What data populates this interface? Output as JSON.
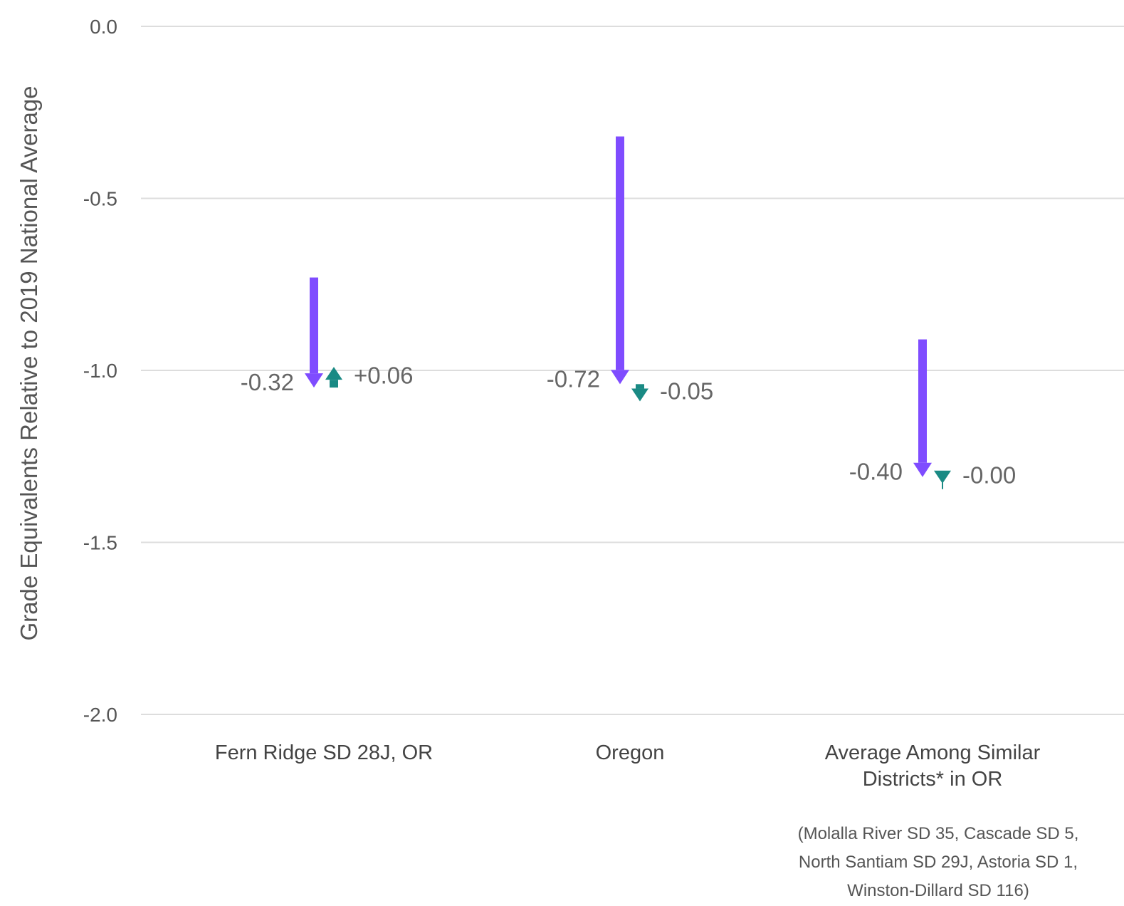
{
  "chart_data": {
    "type": "arrow",
    "ylabel": "Grade Equivalents Relative to 2019 National Average",
    "ylim": [
      -2.0,
      0.0
    ],
    "yticks": [
      0.0,
      -0.5,
      -1.0,
      -1.5,
      -2.0
    ],
    "ytick_labels": [
      "0.0",
      "-0.5",
      "-1.0",
      "-1.5",
      "-2.0"
    ],
    "grid": true,
    "legend": "none",
    "colors": {
      "series_1": "#7f4cff",
      "series_2": "#1a8a84",
      "grid": "#dddddd",
      "text": "#555555"
    },
    "categories": [
      {
        "label": [
          "Fern Ridge SD 28J, OR"
        ],
        "arrows": [
          {
            "series": "series_1",
            "start": -0.73,
            "end": -1.05,
            "change_label": "-0.32"
          },
          {
            "series": "series_2",
            "start": -1.05,
            "end": -0.99,
            "change_label": "+0.06"
          }
        ]
      },
      {
        "label": [
          "Oregon"
        ],
        "arrows": [
          {
            "series": "series_1",
            "start": -0.32,
            "end": -1.04,
            "change_label": "-0.72"
          },
          {
            "series": "series_2",
            "start": -1.04,
            "end": -1.09,
            "change_label": "-0.05"
          }
        ]
      },
      {
        "label": [
          "Average Among Similar",
          "Districts* in OR"
        ],
        "arrows": [
          {
            "series": "series_1",
            "start": -0.91,
            "end": -1.31,
            "change_label": "-0.40"
          },
          {
            "series": "series_2",
            "start": -1.31,
            "end": -1.31,
            "change_label": "-0.00"
          }
        ],
        "footnote": [
          "(Molalla River SD 35, Cascade SD 5,",
          "North Santiam SD 29J, Astoria SD 1,",
          "Winston-Dillard SD 116)"
        ]
      }
    ]
  }
}
